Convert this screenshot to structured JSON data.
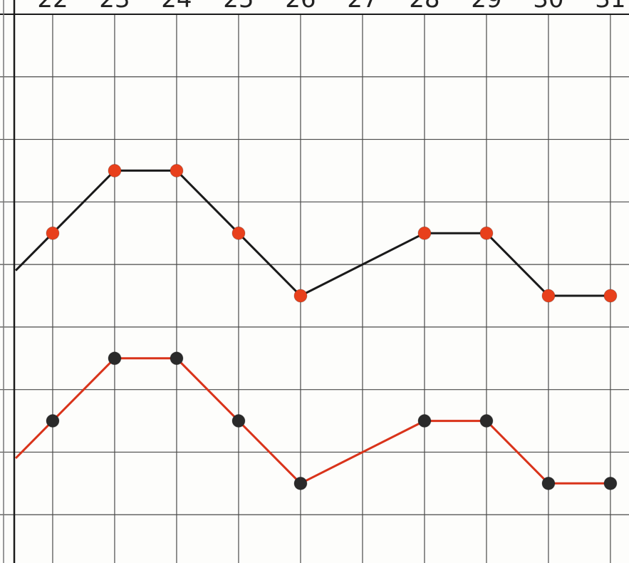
{
  "chart_data": {
    "type": "line",
    "title": "",
    "xlabel": "",
    "ylabel": "",
    "x": [
      22,
      23,
      24,
      25,
      26,
      27,
      28,
      29,
      30,
      31
    ],
    "x_tick_labels": [
      "22",
      "23",
      "24",
      "25",
      "26",
      "27",
      "28",
      "29",
      "30",
      "31"
    ],
    "xlim": [
      21.15,
      31.3
    ],
    "ylim": [
      0,
      9
    ],
    "grid": true,
    "y_tick_labels_visible": false,
    "series": [
      {
        "points": [
          [
            22,
            5.5
          ],
          [
            23,
            6.5
          ],
          [
            24,
            6.5
          ],
          [
            25,
            5.5
          ],
          [
            26,
            4.5
          ],
          [
            28,
            5.5
          ],
          [
            29,
            5.5
          ],
          [
            30,
            4.5
          ],
          [
            31,
            4.5
          ]
        ],
        "line_color": "#1a1a1a",
        "marker_color": "#e8401c"
      },
      {
        "points": [
          [
            22,
            2.5
          ],
          [
            23,
            3.5
          ],
          [
            24,
            3.5
          ],
          [
            25,
            2.5
          ],
          [
            26,
            1.5
          ],
          [
            28,
            2.5
          ],
          [
            29,
            2.5
          ],
          [
            30,
            1.5
          ],
          [
            31,
            1.5
          ]
        ],
        "line_color": "#d9331a",
        "marker_color": "#2a2a2a"
      }
    ],
    "colors": {
      "grid": "#4a4a4a",
      "axis": "#1a1a1a",
      "background": "#fdfdfb"
    }
  }
}
